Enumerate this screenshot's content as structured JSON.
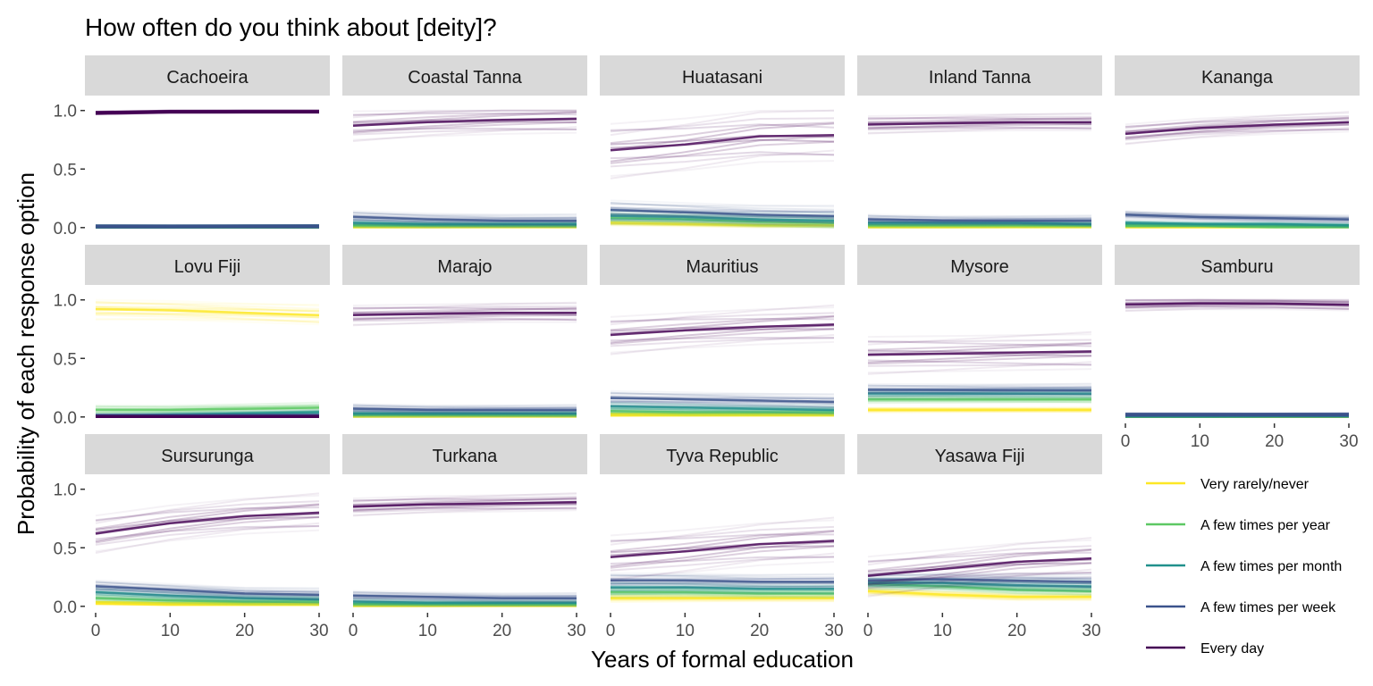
{
  "chart_data": {
    "type": "line",
    "title": "How often do you think about [deity]?",
    "xlabel": "Years of formal education",
    "ylabel": "Probability of each response option",
    "xlim": [
      0,
      30
    ],
    "ylim": [
      0,
      1
    ],
    "x_ticks": [
      "0",
      "10",
      "20",
      "30"
    ],
    "y_ticks": [
      "0.0",
      "0.5",
      "1.0"
    ],
    "x": [
      0,
      10,
      20,
      30
    ],
    "legend_position": "right",
    "series_names": [
      "Very rarely/never",
      "A few times per year",
      "A few times per month",
      "A few times per week",
      "Every day"
    ],
    "series_colors": [
      "#FDE725",
      "#5DC863",
      "#21908C",
      "#3B528B",
      "#440154"
    ],
    "facets": [
      {
        "name": "Cachoeira",
        "band": [
          0.01,
          0.01,
          0.01,
          0.01,
          0.01
        ],
        "series": [
          [
            0.0,
            0.0,
            0.0,
            0.0
          ],
          [
            0.0,
            0.0,
            0.0,
            0.0
          ],
          [
            0.01,
            0.01,
            0.01,
            0.01
          ],
          [
            0.01,
            0.01,
            0.01,
            0.01
          ],
          [
            0.98,
            0.99,
            0.99,
            0.99
          ]
        ]
      },
      {
        "name": "Coastal Tanna",
        "band": [
          0.01,
          0.02,
          0.03,
          0.05,
          0.12
        ],
        "series": [
          [
            0.01,
            0.01,
            0.01,
            0.01
          ],
          [
            0.02,
            0.02,
            0.02,
            0.02
          ],
          [
            0.04,
            0.03,
            0.03,
            0.03
          ],
          [
            0.09,
            0.07,
            0.06,
            0.06
          ],
          [
            0.87,
            0.9,
            0.92,
            0.93
          ]
        ]
      },
      {
        "name": "Huatasani",
        "band": [
          0.02,
          0.05,
          0.06,
          0.08,
          0.22
        ],
        "series": [
          [
            0.04,
            0.03,
            0.02,
            0.02
          ],
          [
            0.08,
            0.07,
            0.05,
            0.04
          ],
          [
            0.1,
            0.09,
            0.07,
            0.06
          ],
          [
            0.15,
            0.13,
            0.11,
            0.1
          ],
          [
            0.66,
            0.71,
            0.78,
            0.79
          ]
        ]
      },
      {
        "name": "Inland Tanna",
        "band": [
          0.01,
          0.02,
          0.02,
          0.04,
          0.07
        ],
        "series": [
          [
            0.01,
            0.01,
            0.01,
            0.01
          ],
          [
            0.02,
            0.02,
            0.02,
            0.02
          ],
          [
            0.04,
            0.04,
            0.04,
            0.03
          ],
          [
            0.07,
            0.06,
            0.06,
            0.06
          ],
          [
            0.88,
            0.89,
            0.9,
            0.9
          ]
        ]
      },
      {
        "name": "Kananga",
        "band": [
          0.01,
          0.01,
          0.02,
          0.03,
          0.08
        ],
        "series": [
          [
            0.01,
            0.01,
            0.01,
            0.01
          ],
          [
            0.02,
            0.02,
            0.01,
            0.01
          ],
          [
            0.04,
            0.03,
            0.03,
            0.02
          ],
          [
            0.11,
            0.09,
            0.08,
            0.07
          ],
          [
            0.8,
            0.85,
            0.88,
            0.9
          ]
        ]
      },
      {
        "name": "Lovu Fiji",
        "band": [
          0.08,
          0.04,
          0.02,
          0.01,
          0.01
        ],
        "series": [
          [
            0.92,
            0.91,
            0.89,
            0.87
          ],
          [
            0.06,
            0.06,
            0.07,
            0.08
          ],
          [
            0.01,
            0.02,
            0.03,
            0.04
          ],
          [
            0.01,
            0.01,
            0.01,
            0.01
          ],
          [
            0.0,
            0.0,
            0.0,
            0.0
          ]
        ]
      },
      {
        "name": "Marajo",
        "band": [
          0.01,
          0.02,
          0.03,
          0.04,
          0.08
        ],
        "series": [
          [
            0.01,
            0.01,
            0.01,
            0.01
          ],
          [
            0.02,
            0.02,
            0.02,
            0.02
          ],
          [
            0.03,
            0.03,
            0.03,
            0.03
          ],
          [
            0.07,
            0.06,
            0.06,
            0.06
          ],
          [
            0.87,
            0.88,
            0.89,
            0.89
          ]
        ]
      },
      {
        "name": "Mauritius",
        "band": [
          0.01,
          0.03,
          0.04,
          0.06,
          0.15
        ],
        "series": [
          [
            0.02,
            0.02,
            0.02,
            0.02
          ],
          [
            0.05,
            0.04,
            0.04,
            0.04
          ],
          [
            0.09,
            0.08,
            0.07,
            0.06
          ],
          [
            0.16,
            0.15,
            0.14,
            0.13
          ],
          [
            0.7,
            0.74,
            0.77,
            0.79
          ]
        ]
      },
      {
        "name": "Mysore",
        "band": [
          0.02,
          0.03,
          0.04,
          0.05,
          0.15
        ],
        "series": [
          [
            0.06,
            0.06,
            0.06,
            0.06
          ],
          [
            0.15,
            0.15,
            0.15,
            0.15
          ],
          [
            0.2,
            0.2,
            0.2,
            0.2
          ],
          [
            0.23,
            0.23,
            0.23,
            0.23
          ],
          [
            0.53,
            0.54,
            0.55,
            0.56
          ]
        ]
      },
      {
        "name": "Samburu",
        "band": [
          0.0,
          0.01,
          0.01,
          0.01,
          0.05
        ],
        "series": [
          [
            0.0,
            0.0,
            0.0,
            0.0
          ],
          [
            0.01,
            0.01,
            0.01,
            0.01
          ],
          [
            0.01,
            0.01,
            0.01,
            0.01
          ],
          [
            0.02,
            0.02,
            0.02,
            0.02
          ],
          [
            0.96,
            0.97,
            0.97,
            0.96
          ]
        ]
      },
      {
        "name": "Sursurunga",
        "band": [
          0.01,
          0.03,
          0.04,
          0.05,
          0.15
        ],
        "series": [
          [
            0.03,
            0.02,
            0.02,
            0.02
          ],
          [
            0.07,
            0.05,
            0.04,
            0.04
          ],
          [
            0.12,
            0.09,
            0.07,
            0.06
          ],
          [
            0.17,
            0.14,
            0.11,
            0.1
          ],
          [
            0.62,
            0.71,
            0.77,
            0.8
          ]
        ]
      },
      {
        "name": "Turkana",
        "band": [
          0.01,
          0.02,
          0.03,
          0.04,
          0.07
        ],
        "series": [
          [
            0.01,
            0.01,
            0.01,
            0.01
          ],
          [
            0.02,
            0.02,
            0.02,
            0.02
          ],
          [
            0.04,
            0.03,
            0.03,
            0.03
          ],
          [
            0.09,
            0.08,
            0.07,
            0.07
          ],
          [
            0.85,
            0.87,
            0.88,
            0.89
          ]
        ]
      },
      {
        "name": "Tyva Republic",
        "band": [
          0.03,
          0.04,
          0.05,
          0.06,
          0.18
        ],
        "series": [
          [
            0.07,
            0.07,
            0.07,
            0.07
          ],
          [
            0.12,
            0.12,
            0.11,
            0.11
          ],
          [
            0.16,
            0.16,
            0.15,
            0.15
          ],
          [
            0.22,
            0.22,
            0.21,
            0.21
          ],
          [
            0.42,
            0.47,
            0.53,
            0.56
          ]
        ]
      },
      {
        "name": "Yasawa Fiji",
        "band": [
          0.03,
          0.04,
          0.05,
          0.06,
          0.16
        ],
        "series": [
          [
            0.13,
            0.1,
            0.08,
            0.08
          ],
          [
            0.19,
            0.17,
            0.14,
            0.13
          ],
          [
            0.2,
            0.2,
            0.18,
            0.17
          ],
          [
            0.22,
            0.23,
            0.22,
            0.21
          ],
          [
            0.26,
            0.32,
            0.38,
            0.41
          ]
        ]
      }
    ]
  }
}
